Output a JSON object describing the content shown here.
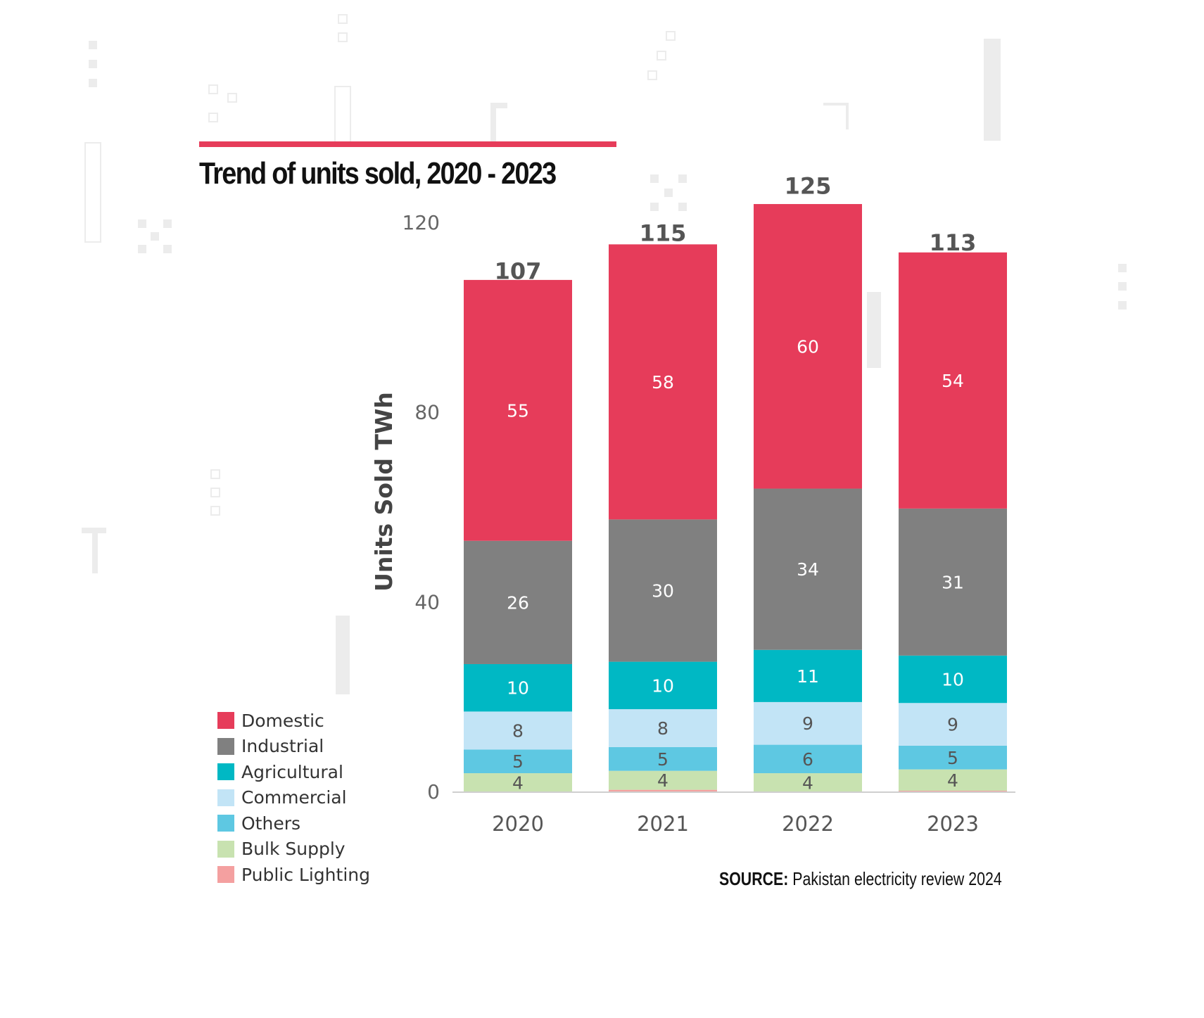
{
  "title": "Trend of units sold, 2020 - 2023",
  "source": {
    "label": "SOURCE:",
    "text": "Pakistan electricity review 2024"
  },
  "colors": {
    "accent": "#e63c5a",
    "Domestic": "#e63c5a",
    "Industrial": "#808080",
    "Agricultural": "#00b8c4",
    "Commercial": "#c2e4f6",
    "Others": "#5ec8e2",
    "Bulk Supply": "#c8e2b0",
    "Public Lighting": "#f4a0a0"
  },
  "legend": [
    {
      "label": "Domestic",
      "color": "#e63c5a"
    },
    {
      "label": "Industrial",
      "color": "#808080"
    },
    {
      "label": "Agricultural",
      "color": "#00b8c4"
    },
    {
      "label": "Commercial",
      "color": "#c2e4f6"
    },
    {
      "label": "Others",
      "color": "#5ec8e2"
    },
    {
      "label": "Bulk Supply",
      "color": "#c8e2b0"
    },
    {
      "label": "Public Lighting",
      "color": "#f4a0a0"
    }
  ],
  "chart_data": {
    "type": "bar",
    "stacked": true,
    "ylabel": "Units Sold TWh",
    "xlabel": "",
    "ylim": [
      0,
      120
    ],
    "yticks": [
      0,
      40,
      80,
      120
    ],
    "grid": false,
    "legend_position": "bottom-left",
    "categories": [
      "2020",
      "2021",
      "2022",
      "2023"
    ],
    "totals": [
      107,
      115,
      125,
      113
    ],
    "series": [
      {
        "name": "Public Lighting",
        "values": [
          0,
          0.5,
          0,
          0.3
        ]
      },
      {
        "name": "Bulk Supply",
        "values": [
          4,
          4,
          4,
          4.5
        ]
      },
      {
        "name": "Others",
        "values": [
          5,
          5,
          6,
          5
        ]
      },
      {
        "name": "Commercial",
        "values": [
          8,
          8,
          9,
          9
        ]
      },
      {
        "name": "Agricultural",
        "values": [
          10,
          10,
          11,
          10
        ]
      },
      {
        "name": "Industrial",
        "values": [
          26,
          30,
          34,
          31
        ]
      },
      {
        "name": "Domestic",
        "values": [
          55,
          58,
          60,
          54
        ]
      }
    ],
    "data_labels": {
      "Public Lighting": [
        "",
        "",
        "",
        ""
      ],
      "Bulk Supply": [
        "4",
        "4",
        "4",
        "4"
      ],
      "Others": [
        "5",
        "5",
        "6",
        "5"
      ],
      "Commercial": [
        "8",
        "8",
        "9",
        "9"
      ],
      "Agricultural": [
        "10",
        "10",
        "11",
        "10"
      ],
      "Industrial": [
        "26",
        "30",
        "34",
        "31"
      ],
      "Domestic": [
        "55",
        "58",
        "60",
        "54"
      ]
    }
  }
}
